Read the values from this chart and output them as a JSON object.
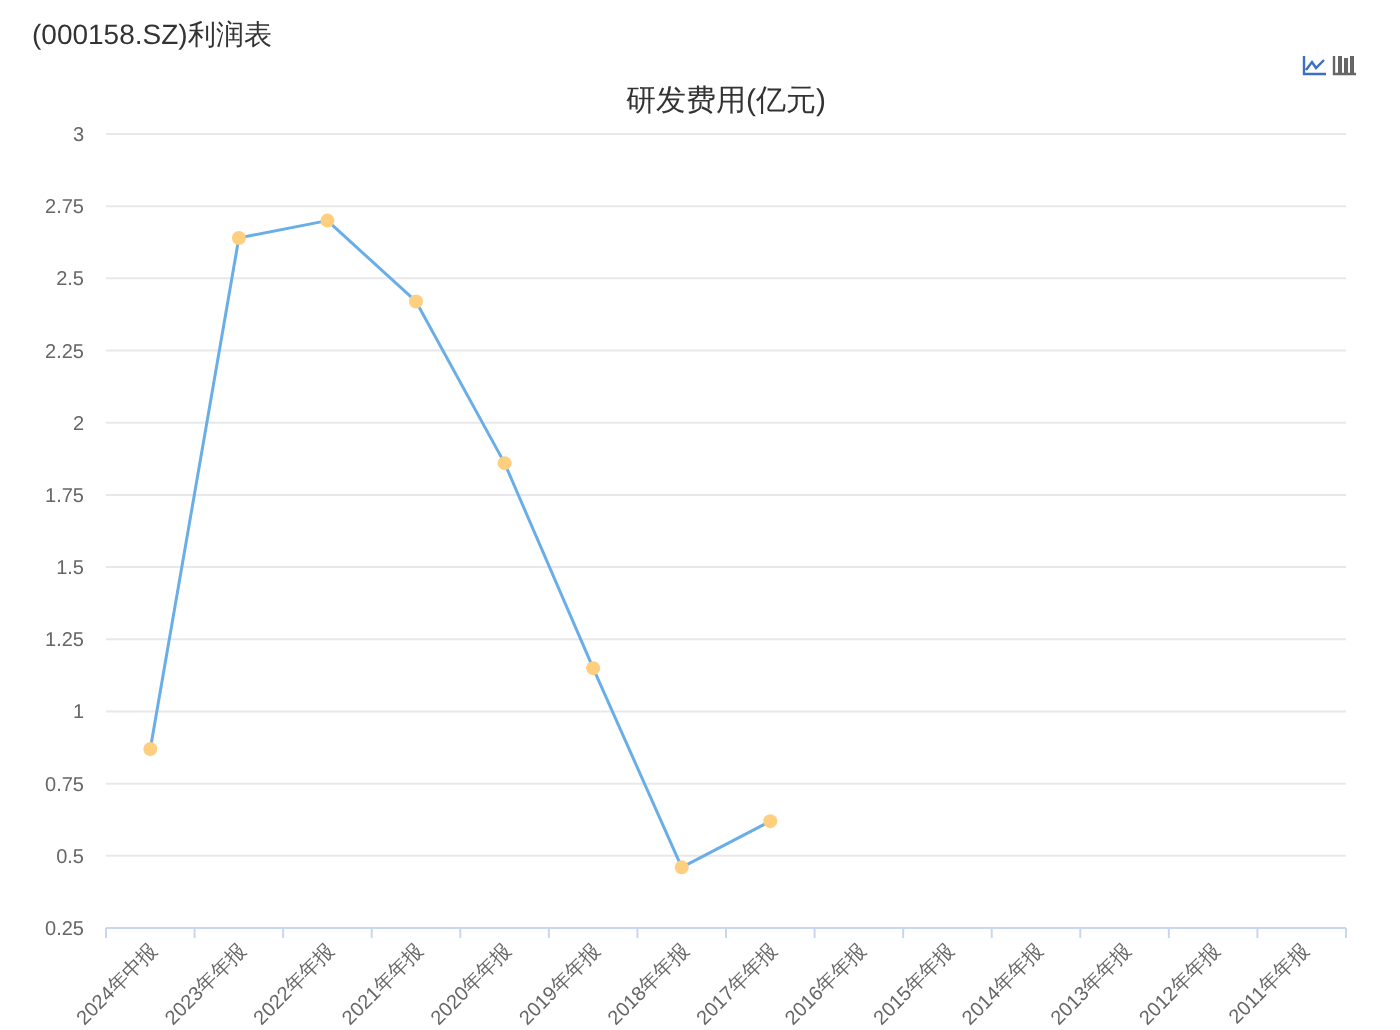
{
  "chart_data": {
    "type": "line",
    "title": "(000158.SZ)利润表",
    "subtitle": "研发费用(亿元)",
    "categories": [
      "2024年中报",
      "2023年年报",
      "2022年年报",
      "2021年年报",
      "2020年年报",
      "2019年年报",
      "2018年年报",
      "2017年年报",
      "2016年年报",
      "2015年年报",
      "2014年年报",
      "2013年年报",
      "2012年年报",
      "2011年年报"
    ],
    "series": [
      {
        "color": "#6aaee8",
        "colors": [
          "#fdcf7f",
          "#fdcf7f",
          "#fdcf7f",
          "#fdcf7f",
          "#fdcf7f",
          "#fdcf7f",
          "#fdcf7f",
          "#fdcf7f",
          null,
          null,
          null,
          null,
          null,
          null
        ],
        "values": [
          0.87,
          2.64,
          2.7,
          2.42,
          1.86,
          1.15,
          0.46,
          0.62,
          null,
          null,
          null,
          null,
          null,
          null
        ]
      }
    ],
    "ylim": [
      0.25,
      3
    ],
    "yticks": [
      0.25,
      0.5,
      0.75,
      1,
      1.25,
      1.5,
      1.75,
      2,
      2.25,
      2.5,
      2.75,
      3
    ],
    "grid": "y",
    "marker": "circle",
    "line_style": "solid"
  }
}
